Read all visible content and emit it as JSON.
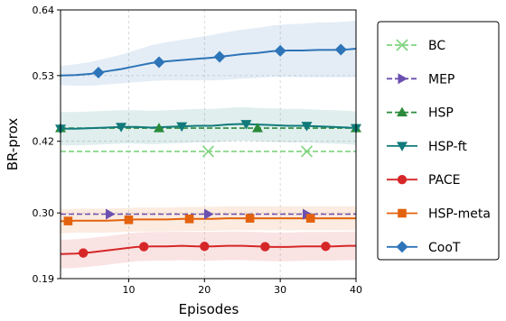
{
  "chart_data": {
    "type": "line",
    "xlabel": "Episodes",
    "ylabel": "BR-prox",
    "xlim": [
      1,
      40
    ],
    "ylim": [
      0.19,
      0.64
    ],
    "xticks": [
      10,
      20,
      30,
      40
    ],
    "yticks": [
      0.19,
      0.3,
      0.42,
      0.53,
      0.64
    ],
    "ytick_labels": [
      "0.19",
      "0.30",
      "0.42",
      "0.53",
      "0.64"
    ],
    "grid": true,
    "legend_position": "outside-right",
    "x": [
      1,
      3,
      5,
      7,
      9,
      11,
      13,
      15,
      17,
      19,
      21,
      23,
      25,
      27,
      29,
      31,
      33,
      35,
      37,
      39,
      40
    ],
    "series": [
      {
        "name": "BC",
        "color": "#7ed47e",
        "linestyle": "dashed",
        "marker": "x",
        "marker_x": [
          20.5,
          33.5
        ],
        "values": [
          0.403,
          0.403,
          0.403,
          0.403,
          0.403,
          0.403,
          0.403,
          0.403,
          0.403,
          0.403,
          0.403,
          0.403,
          0.403,
          0.403,
          0.403,
          0.403,
          0.403,
          0.403,
          0.403,
          0.403,
          0.403
        ]
      },
      {
        "name": "MEP",
        "color": "#6a4fb0",
        "linestyle": "dashed",
        "marker": "triangle-right",
        "marker_x": [
          7.5,
          20.5,
          33.5
        ],
        "values": [
          0.298,
          0.298,
          0.298,
          0.298,
          0.298,
          0.298,
          0.298,
          0.298,
          0.298,
          0.298,
          0.298,
          0.298,
          0.298,
          0.298,
          0.298,
          0.298,
          0.298,
          0.298,
          0.298,
          0.298,
          0.298
        ]
      },
      {
        "name": "HSP",
        "color": "#2a8a3a",
        "linestyle": "dashed",
        "marker": "triangle-up",
        "marker_x": [
          1,
          14,
          27,
          40
        ],
        "values": [
          0.442,
          0.442,
          0.442,
          0.442,
          0.442,
          0.442,
          0.442,
          0.442,
          0.442,
          0.442,
          0.442,
          0.442,
          0.442,
          0.442,
          0.442,
          0.442,
          0.442,
          0.442,
          0.442,
          0.442,
          0.442
        ]
      },
      {
        "name": "HSP-ft",
        "color": "#117a7a",
        "linestyle": "solid",
        "marker": "triangle-down",
        "marker_x": [
          1,
          9,
          17,
          25.5,
          33.5,
          40
        ],
        "values": [
          0.441,
          0.441,
          0.442,
          0.443,
          0.444,
          0.444,
          0.443,
          0.444,
          0.445,
          0.446,
          0.446,
          0.448,
          0.449,
          0.448,
          0.447,
          0.446,
          0.446,
          0.445,
          0.444,
          0.443,
          0.442
        ],
        "band": [
          0.028,
          0.028,
          0.028,
          0.028,
          0.028,
          0.028,
          0.028,
          0.028,
          0.028,
          0.028,
          0.028,
          0.028,
          0.028,
          0.028,
          0.028,
          0.028,
          0.028,
          0.028,
          0.028,
          0.028,
          0.028
        ]
      },
      {
        "name": "PACE",
        "color": "#d62728",
        "linestyle": "solid",
        "marker": "circle",
        "marker_x": [
          4,
          12,
          20,
          28,
          36
        ],
        "values": [
          0.231,
          0.232,
          0.234,
          0.237,
          0.24,
          0.243,
          0.244,
          0.244,
          0.245,
          0.244,
          0.244,
          0.245,
          0.245,
          0.244,
          0.243,
          0.243,
          0.244,
          0.244,
          0.244,
          0.245,
          0.245
        ],
        "band": [
          0.024,
          0.024,
          0.024,
          0.024,
          0.024,
          0.024,
          0.024,
          0.024,
          0.024,
          0.024,
          0.024,
          0.024,
          0.024,
          0.024,
          0.024,
          0.024,
          0.024,
          0.024,
          0.024,
          0.024,
          0.024
        ]
      },
      {
        "name": "HSP-meta",
        "color": "#e3620e",
        "linestyle": "solid",
        "marker": "square",
        "marker_x": [
          2,
          10,
          18,
          26,
          34
        ],
        "values": [
          0.286,
          0.287,
          0.287,
          0.287,
          0.288,
          0.289,
          0.289,
          0.289,
          0.29,
          0.29,
          0.29,
          0.291,
          0.291,
          0.291,
          0.291,
          0.291,
          0.291,
          0.291,
          0.291,
          0.291,
          0.291
        ],
        "band": [
          0.02,
          0.02,
          0.02,
          0.02,
          0.02,
          0.02,
          0.02,
          0.02,
          0.02,
          0.02,
          0.02,
          0.02,
          0.02,
          0.02,
          0.02,
          0.02,
          0.02,
          0.02,
          0.02,
          0.02,
          0.02
        ]
      },
      {
        "name": "CooT",
        "color": "#2d74b8",
        "linestyle": "solid",
        "marker": "diamond",
        "marker_x": [
          6,
          14,
          22,
          30,
          38
        ],
        "values": [
          0.53,
          0.531,
          0.533,
          0.537,
          0.541,
          0.546,
          0.551,
          0.554,
          0.556,
          0.558,
          0.56,
          0.563,
          0.566,
          0.568,
          0.571,
          0.572,
          0.572,
          0.573,
          0.573,
          0.574,
          0.575
        ],
        "band": [
          0.016,
          0.018,
          0.02,
          0.022,
          0.024,
          0.027,
          0.03,
          0.032,
          0.034,
          0.036,
          0.038,
          0.04,
          0.041,
          0.042,
          0.043,
          0.044,
          0.045,
          0.046,
          0.046,
          0.047,
          0.047
        ]
      }
    ]
  }
}
